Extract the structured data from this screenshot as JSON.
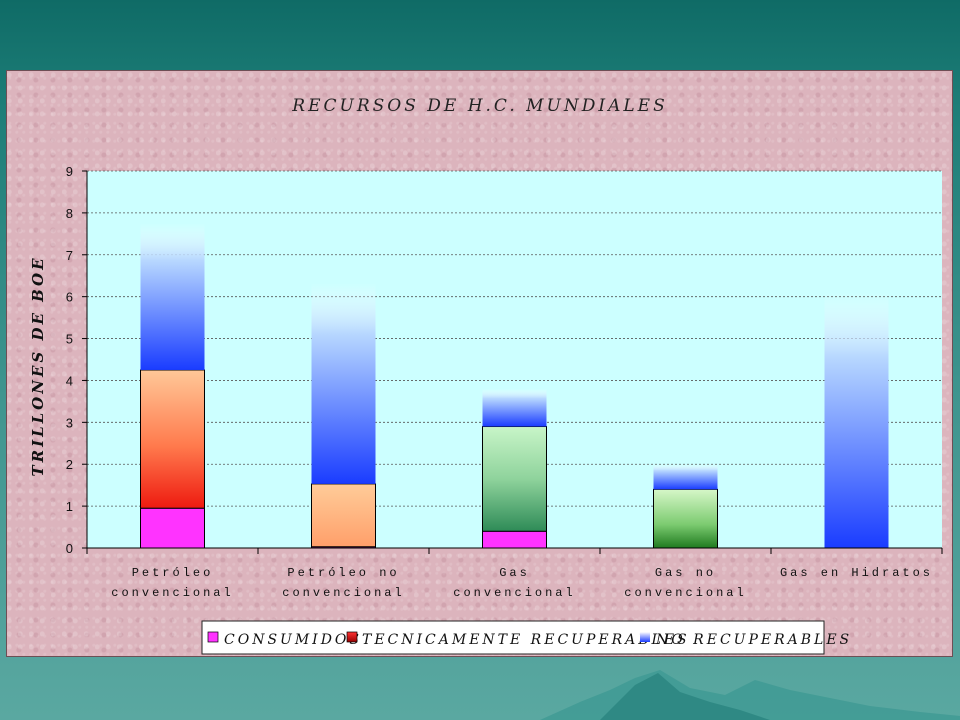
{
  "chart_data": {
    "type": "bar",
    "stacked": true,
    "title": "RECURSOS DE H.C. MUNDIALES",
    "ylabel": "TRILLONES DE BOE",
    "xlabel": "",
    "ylim": [
      0,
      9
    ],
    "yticks": [
      "0",
      "1",
      "2",
      "3",
      "4",
      "5",
      "6",
      "7",
      "8",
      "9"
    ],
    "grid": true,
    "legend_position": "bottom",
    "categories": [
      [
        "Petróleo",
        "convencional"
      ],
      [
        "Petróleo no",
        "convencional"
      ],
      [
        "Gas",
        "convencional"
      ],
      [
        "Gas no",
        "convencional"
      ],
      [
        "Gas en Hidratos"
      ]
    ],
    "series": [
      {
        "name": "CONSUMIDOS",
        "values": [
          0.95,
          0.03,
          0.4,
          0,
          0
        ]
      },
      {
        "name": "TECNICAMENTE RECUPERABLES",
        "values": [
          3.3,
          1.5,
          2.5,
          1.4,
          0
        ]
      },
      {
        "name": "NO RECUPERABLES",
        "values": [
          3.5,
          4.8,
          0.9,
          0.6,
          6.1
        ]
      }
    ],
    "colors": {
      "plot_bg": "#ccffff",
      "consumidos": "#ff33ff",
      "tecnicamente_recuperables": "#ff0000",
      "no_recuperables": "#1a3cff"
    }
  }
}
